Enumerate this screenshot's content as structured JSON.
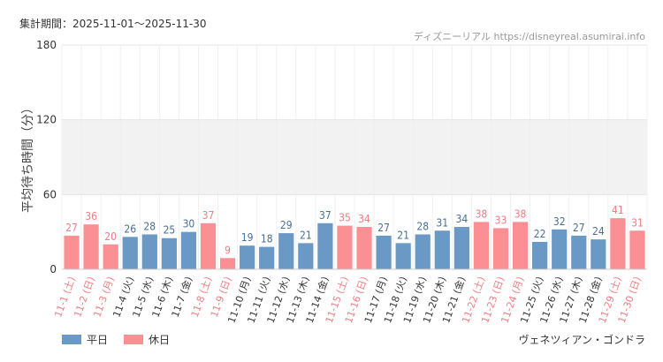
{
  "header": {
    "period": "集計期間：2025-11-01～2025-11-30",
    "source": "ディズニーリアル https://disneyreal.asumirai.info"
  },
  "footer": {
    "subject": "ヴェネツィアン・ゴンドラ"
  },
  "colors": {
    "weekday": "#6b99c6",
    "holiday": "#fa8f94",
    "weekday_label": "#4a6f96",
    "holiday_label": "#f07d83",
    "axis_text": "#333333",
    "grid": "#e6e6e6",
    "band": "#f2f2f2"
  },
  "chart_data": {
    "type": "bar",
    "ylabel": "平均待ち時間（分）",
    "ylim": [
      0,
      180
    ],
    "yticks": [
      0,
      60,
      120,
      180
    ],
    "categories": [
      "11-1 (土)",
      "11-2 (日)",
      "11-3 (月)",
      "11-4 (火)",
      "11-5 (水)",
      "11-6 (木)",
      "11-7 (金)",
      "11-8 (土)",
      "11-9 (日)",
      "11-10 (月)",
      "11-11 (火)",
      "11-12 (水)",
      "11-13 (木)",
      "11-14 (金)",
      "11-15 (土)",
      "11-16 (日)",
      "11-17 (月)",
      "11-18 (火)",
      "11-19 (水)",
      "11-20 (木)",
      "11-21 (金)",
      "11-22 (土)",
      "11-23 (日)",
      "11-24 (月)",
      "11-25 (火)",
      "11-26 (水)",
      "11-27 (木)",
      "11-28 (金)",
      "11-29 (土)",
      "11-30 (日)"
    ],
    "values": [
      27,
      36,
      20,
      26,
      28,
      25,
      30,
      37,
      9,
      19,
      18,
      29,
      21,
      37,
      35,
      34,
      27,
      21,
      28,
      31,
      34,
      38,
      33,
      38,
      22,
      32,
      27,
      24,
      41,
      31
    ],
    "day_type": [
      "holiday",
      "holiday",
      "holiday",
      "weekday",
      "weekday",
      "weekday",
      "weekday",
      "holiday",
      "holiday",
      "weekday",
      "weekday",
      "weekday",
      "weekday",
      "weekday",
      "holiday",
      "holiday",
      "weekday",
      "weekday",
      "weekday",
      "weekday",
      "weekday",
      "holiday",
      "holiday",
      "holiday",
      "weekday",
      "weekday",
      "weekday",
      "weekday",
      "holiday",
      "holiday"
    ],
    "legend": [
      {
        "key": "weekday",
        "label": "平日"
      },
      {
        "key": "holiday",
        "label": "休日"
      }
    ]
  }
}
